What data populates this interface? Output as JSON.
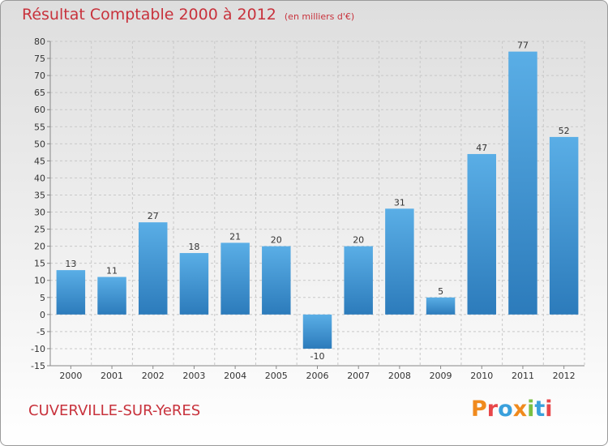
{
  "header": {
    "title": "Résultat Comptable 2000 à 2012",
    "subtitle": "(en milliers d'€)"
  },
  "footer": {
    "commune": "CUVERVILLE-SUR-YeRES",
    "logo_letters": [
      "P",
      "r",
      "o",
      "x",
      "i",
      "t",
      "i"
    ]
  },
  "colors": {
    "title": "#c8323c",
    "bar_top": "#5aaee6",
    "bar_bottom": "#2c7bbb",
    "grid": "#c8c8c8",
    "logo": [
      "#f08a1d",
      "#e8474a",
      "#3aa0dc",
      "#f08a1d",
      "#7ac043",
      "#3aa0dc",
      "#e8474a"
    ]
  },
  "chart_data": {
    "type": "bar",
    "title": "Résultat Comptable 2000 à 2012",
    "ylabel": "en milliers d'€",
    "xlabel": "",
    "categories": [
      "2000",
      "2001",
      "2002",
      "2003",
      "2004",
      "2005",
      "2006",
      "2007",
      "2008",
      "2009",
      "2010",
      "2011",
      "2012"
    ],
    "values": [
      13,
      11,
      27,
      18,
      21,
      20,
      -10,
      20,
      31,
      5,
      47,
      77,
      52
    ],
    "ylim": [
      -15,
      80
    ],
    "yticks": [
      -15,
      -10,
      -5,
      0,
      5,
      10,
      15,
      20,
      25,
      30,
      35,
      40,
      45,
      50,
      55,
      60,
      65,
      70,
      75,
      80
    ],
    "grid": true,
    "legend": "none"
  }
}
